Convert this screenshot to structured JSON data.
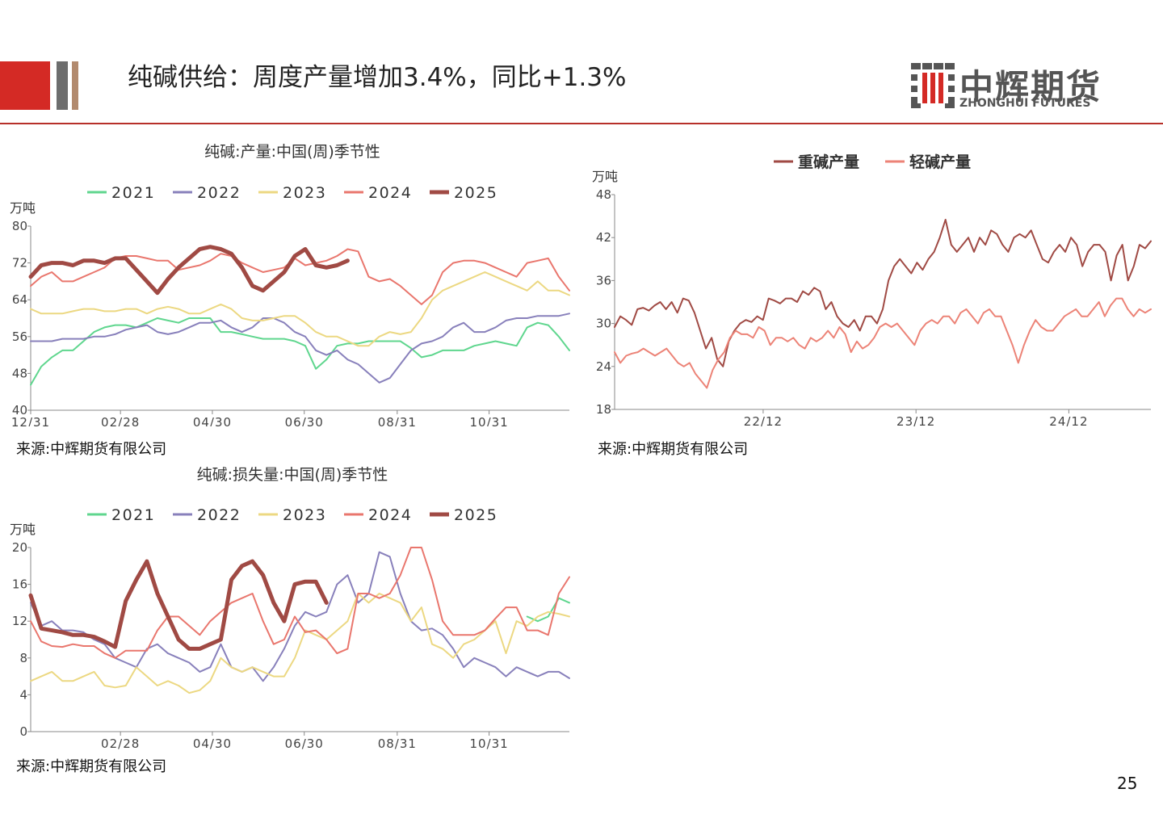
{
  "header": {
    "title": "纯碱供给：周度产量增加3.4%，同比+1.3%",
    "logo_cn": "中辉期货",
    "logo_en": "ZHONGHUI FUTURES"
  },
  "page_number": "25",
  "colors": {
    "y2021": "#5fd68e",
    "y2022": "#8880bb",
    "y2023": "#ecd882",
    "y2024": "#e9766d",
    "y2025": "#a04a44",
    "heavy": "#a04a44",
    "light": "#ec8377"
  },
  "chart_data": [
    {
      "id": "output",
      "type": "line",
      "title": "纯碱:产量:中国(周)季节性",
      "unit": "万吨",
      "ylim": [
        40,
        80
      ],
      "yticks": [
        "40",
        "48",
        "56",
        "64",
        "72",
        "80"
      ],
      "xlim": [
        1,
        52
      ],
      "xticks": [
        {
          "label": "12/31",
          "x": 1
        },
        {
          "label": "02/28",
          "x": 9.5
        },
        {
          "label": "04/30",
          "x": 18.2
        },
        {
          "label": "06/30",
          "x": 26.9
        },
        {
          "label": "08/31",
          "x": 35.7
        },
        {
          "label": "10/31",
          "x": 44.4
        }
      ],
      "source": "来源:中辉期货有限公司",
      "series": [
        {
          "name": "2021",
          "color": "#5fd68e",
          "width": 2,
          "values": [
            45.5,
            49.5,
            51.5,
            53,
            53,
            55,
            57,
            58,
            58.5,
            58.5,
            58,
            59,
            60,
            59.5,
            59,
            60,
            60,
            60,
            57,
            57,
            56.5,
            56,
            55.5,
            55.5,
            55.5,
            55,
            54,
            49,
            51,
            54,
            54.5,
            54.5,
            55,
            55,
            55,
            55,
            53.5,
            51.5,
            52,
            53,
            53,
            53,
            54,
            54.5,
            55,
            54.5,
            54,
            58,
            59,
            58.5,
            56,
            53
          ]
        },
        {
          "name": "2022",
          "color": "#8880bb",
          "width": 2,
          "values": [
            55,
            55,
            55,
            55.5,
            55.5,
            55.5,
            56,
            56,
            56.5,
            57.5,
            58,
            58.5,
            57,
            56.5,
            57,
            58,
            59,
            59,
            59.5,
            58,
            57,
            58,
            60,
            60,
            59,
            57,
            56,
            53,
            52,
            53,
            51,
            50,
            48,
            46,
            47,
            50,
            53,
            54.5,
            55,
            56,
            58,
            59,
            57,
            57,
            58,
            59.5,
            60,
            60,
            60.5,
            60.5,
            60.5,
            61
          ]
        },
        {
          "name": "2023",
          "color": "#ecd882",
          "width": 2,
          "values": [
            62,
            61,
            61,
            61,
            61.5,
            62,
            62,
            61.5,
            61.5,
            62,
            62,
            61,
            62,
            62.5,
            62,
            61,
            61,
            62,
            63,
            62,
            60,
            59.5,
            59.5,
            60,
            60.5,
            60.5,
            59,
            57,
            56,
            56,
            55,
            54,
            54,
            56,
            57,
            56.5,
            57,
            60,
            64,
            66,
            67,
            68,
            69,
            70,
            69,
            68,
            67,
            66,
            68,
            66,
            66,
            65
          ]
        },
        {
          "name": "2024",
          "color": "#e9766d",
          "width": 2,
          "values": [
            67,
            69,
            70,
            68,
            68,
            69,
            70,
            71,
            73,
            73.5,
            73.5,
            73,
            72.5,
            72.5,
            70.5,
            71,
            71.5,
            72.5,
            74,
            73.5,
            72,
            71,
            70,
            70.5,
            71,
            73,
            71.5,
            72,
            72.5,
            73.5,
            75,
            74.5,
            69,
            68,
            68.5,
            67,
            65,
            63,
            65,
            70,
            72,
            72.5,
            72.5,
            72,
            71,
            70,
            69,
            72,
            72.5,
            73,
            69,
            66
          ]
        },
        {
          "name": "2025",
          "color": "#a04a44",
          "width": 5,
          "values": [
            69,
            71.5,
            72,
            72,
            71.5,
            72.5,
            72.5,
            72,
            73,
            73,
            70.5,
            68,
            65.5,
            68.5,
            71,
            73,
            75,
            75.5,
            75,
            74,
            71,
            67,
            66,
            68,
            70,
            73.5,
            75,
            71.5,
            71,
            71.5,
            72.5
          ]
        }
      ]
    },
    {
      "id": "heavy-light",
      "type": "line",
      "title": "",
      "unit": "万吨",
      "ylim": [
        18,
        48
      ],
      "yticks": [
        "18",
        "24",
        "30",
        "36",
        "42",
        "48"
      ],
      "xlim": [
        0,
        1
      ],
      "xticks": [
        {
          "label": "22/12",
          "x": 0.277
        },
        {
          "label": "23/12",
          "x": 0.562
        },
        {
          "label": "24/12",
          "x": 0.847
        }
      ],
      "source": "来源:中辉期货有限公司",
      "series": [
        {
          "name": "重碱产量",
          "color": "#a04a44",
          "width": 2,
          "values": [
            29.5,
            31,
            30.5,
            29.8,
            32,
            32.2,
            31.8,
            32.5,
            33,
            32,
            33,
            31.5,
            33.5,
            33.2,
            31.5,
            29,
            26.5,
            28,
            25,
            24,
            27.5,
            29,
            30,
            30.5,
            30.2,
            31,
            30.5,
            33.5,
            33.2,
            32.8,
            33.5,
            33.5,
            33,
            34.5,
            34,
            35,
            34.5,
            32,
            33,
            31,
            30,
            29.5,
            30.5,
            29,
            31,
            31,
            30,
            32,
            36,
            38,
            39,
            38,
            37,
            38.5,
            37.5,
            39,
            40,
            42,
            44.5,
            41,
            40,
            41,
            42,
            40,
            42,
            41,
            43,
            42.5,
            41,
            40,
            42,
            42.5,
            42,
            43,
            41,
            39,
            38.5,
            40,
            41,
            40,
            42,
            41,
            38,
            40,
            41,
            41,
            40,
            36,
            39.5,
            41,
            36,
            38,
            41,
            40.5,
            41.5
          ]
        },
        {
          "name": "轻碱产量",
          "color": "#ec8377",
          "width": 2,
          "values": [
            26,
            24.5,
            25.5,
            25.8,
            26,
            26.5,
            26,
            25.5,
            26,
            26.5,
            25.5,
            24.5,
            24,
            24.5,
            23,
            22,
            21,
            23.5,
            25,
            26,
            28,
            29,
            28.5,
            28.5,
            28,
            29.5,
            29,
            27,
            28,
            28,
            27.5,
            28,
            27,
            26.5,
            28,
            27.5,
            28,
            29,
            28,
            29.5,
            28.5,
            26,
            27.5,
            26.5,
            27,
            28,
            29.5,
            30,
            29.5,
            30,
            29,
            28,
            27,
            29,
            30,
            30.5,
            30,
            31,
            31,
            30,
            31.5,
            32,
            31,
            30,
            31.5,
            32,
            31,
            31,
            29,
            27,
            24.5,
            27,
            29,
            30.5,
            29.5,
            29,
            29,
            30,
            31,
            31.5,
            32,
            31,
            31,
            32,
            33,
            31,
            32.5,
            33.5,
            33.5,
            32,
            31,
            32,
            31.5,
            32
          ]
        }
      ]
    },
    {
      "id": "loss",
      "type": "line",
      "title": "纯碱:损失量:中国(周)季节性",
      "unit": "万吨",
      "ylim": [
        0,
        20
      ],
      "yticks": [
        "0",
        "4",
        "8",
        "12",
        "16",
        "20"
      ],
      "xlim": [
        1,
        52
      ],
      "xticks": [
        {
          "label": "02/28",
          "x": 9.5
        },
        {
          "label": "04/30",
          "x": 18.2
        },
        {
          "label": "06/30",
          "x": 26.9
        },
        {
          "label": "08/31",
          "x": 35.7
        },
        {
          "label": "10/31",
          "x": 44.4
        }
      ],
      "source": "来源:中辉期货有限公司",
      "series": [
        {
          "name": "2021",
          "color": "#5fd68e",
          "width": 2,
          "values": [
            null,
            null,
            null,
            null,
            null,
            null,
            null,
            null,
            null,
            null,
            null,
            null,
            null,
            null,
            null,
            null,
            null,
            null,
            null,
            null,
            null,
            null,
            null,
            null,
            null,
            null,
            null,
            null,
            null,
            null,
            null,
            null,
            null,
            null,
            null,
            null,
            null,
            null,
            null,
            null,
            null,
            null,
            null,
            null,
            null,
            null,
            null,
            12.5,
            12,
            12.5,
            14.5,
            14
          ]
        },
        {
          "name": "2022",
          "color": "#8880bb",
          "width": 2,
          "values": [
            14,
            11.5,
            12,
            11,
            11,
            10.8,
            10,
            9.5,
            8,
            7.5,
            7,
            9,
            9.5,
            8.5,
            8,
            7.5,
            6.5,
            7,
            9.5,
            7,
            6.5,
            7,
            5.5,
            7,
            9,
            11.5,
            13,
            12.5,
            13,
            16,
            17,
            14,
            15,
            19.5,
            19,
            15,
            12,
            11,
            11.2,
            10.5,
            9,
            7,
            8,
            7.5,
            7,
            6,
            7,
            6.5,
            6,
            6.5,
            6.5,
            5.8
          ]
        },
        {
          "name": "2023",
          "color": "#ecd882",
          "width": 2,
          "values": [
            5.5,
            6,
            6.5,
            5.5,
            5.5,
            6,
            6.5,
            5,
            4.8,
            5,
            7,
            6,
            5,
            5.5,
            5,
            4.2,
            4.5,
            5.5,
            8,
            7,
            6.5,
            7,
            6.5,
            6,
            6,
            8,
            11,
            10.5,
            10,
            11,
            12,
            15,
            14,
            15,
            14.5,
            14,
            12,
            13.5,
            9.5,
            9,
            8,
            9.5,
            10,
            11,
            12,
            8.5,
            12,
            11.5,
            12.5,
            13,
            12.8,
            12.5
          ]
        },
        {
          "name": "2024",
          "color": "#e9766d",
          "width": 2,
          "values": [
            12,
            9.8,
            9.3,
            9.2,
            9.5,
            9.3,
            9.3,
            8.5,
            8,
            8.8,
            8.8,
            8.8,
            11,
            12.5,
            12.5,
            11.5,
            10.5,
            12,
            13,
            14,
            14.5,
            15,
            12,
            9.5,
            10,
            12.5,
            10.8,
            11,
            10,
            8.5,
            9,
            15,
            15,
            14.5,
            15,
            17,
            21,
            20,
            16.5,
            12,
            10.5,
            10.5,
            10.5,
            11,
            12.3,
            13.5,
            13.5,
            11,
            11,
            10.5,
            15,
            16.8
          ]
        },
        {
          "name": "2025",
          "color": "#a04a44",
          "width": 5,
          "values": [
            14.8,
            11.2,
            11,
            10.8,
            10.5,
            10.5,
            10.3,
            9.8,
            9.2,
            14.2,
            16.5,
            18.5,
            15,
            12.5,
            10,
            9,
            9,
            9.5,
            10,
            16.5,
            18,
            18.5,
            17,
            14,
            12,
            16,
            16.3,
            16.3,
            14
          ]
        }
      ]
    }
  ]
}
